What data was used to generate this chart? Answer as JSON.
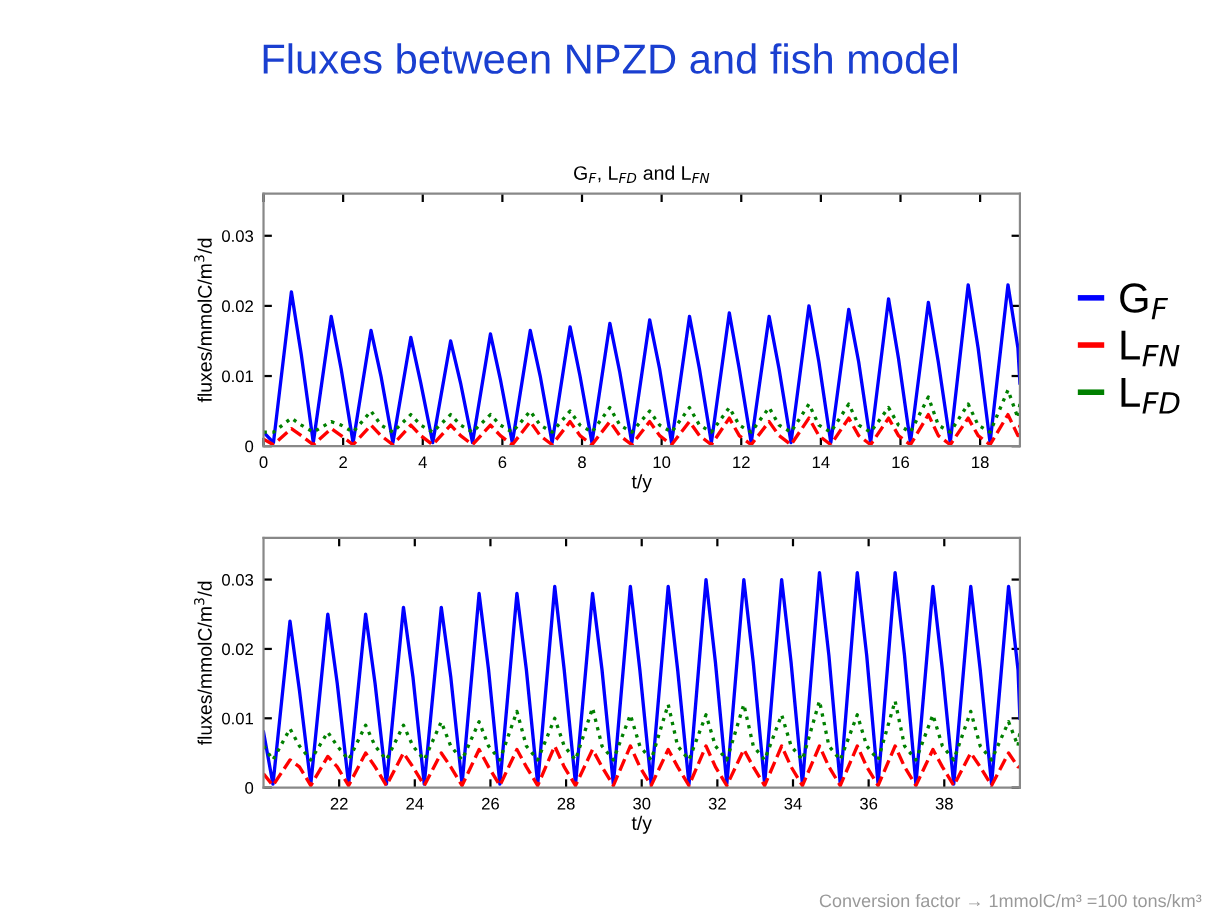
{
  "chart_data": [
    {
      "type": "line",
      "title": "Fluxes between NPZD and fish model",
      "subtitle": "G$_{F}$, L$_{FD}$ and L$_{FN}$",
      "xlabel": "t/y",
      "ylabel": "fluxes/mmolC/m$^{3}$/d",
      "xlim": [
        0,
        19
      ],
      "ylim": [
        0,
        0.036
      ],
      "xticks": [
        0,
        2,
        4,
        6,
        8,
        10,
        12,
        14,
        16,
        18
      ],
      "yticks": [
        0,
        0.01,
        0.02,
        0.03
      ],
      "grid": false,
      "legend": "right",
      "x": [
        0,
        0.25,
        0.7,
        0.95,
        1.25,
        1.7,
        1.95,
        2.25,
        2.7,
        2.95,
        3.25,
        3.7,
        3.95,
        4.25,
        4.7,
        4.95,
        5.25,
        5.7,
        5.95,
        6.25,
        6.7,
        6.95,
        7.25,
        7.7,
        7.95,
        8.25,
        8.7,
        8.95,
        9.25,
        9.7,
        9.95,
        10.25,
        10.7,
        10.95,
        11.25,
        11.7,
        11.95,
        12.25,
        12.7,
        12.95,
        13.25,
        13.7,
        13.95,
        14.25,
        14.7,
        14.95,
        15.25,
        15.7,
        15.95,
        16.25,
        16.7,
        16.95,
        17.25,
        17.7,
        17.95,
        18.25,
        18.7,
        18.95,
        19
      ],
      "series": [
        {
          "name": "G$_{F}$",
          "color": "#0000ff",
          "line_style": "solid",
          "values": [
            0.002,
            0.0005,
            0.022,
            0.013,
            0.0005,
            0.0185,
            0.011,
            0.0005,
            0.0165,
            0.01,
            0.0005,
            0.0155,
            0.009,
            0.0005,
            0.015,
            0.009,
            0.0005,
            0.016,
            0.0095,
            0.0005,
            0.0165,
            0.01,
            0.0005,
            0.017,
            0.01,
            0.0005,
            0.0175,
            0.0105,
            0.0005,
            0.018,
            0.011,
            0.0005,
            0.0185,
            0.011,
            0.0005,
            0.019,
            0.011,
            0.0005,
            0.0185,
            0.011,
            0.0005,
            0.02,
            0.012,
            0.0005,
            0.0195,
            0.012,
            0.0005,
            0.021,
            0.0125,
            0.0005,
            0.0205,
            0.012,
            0.0005,
            0.023,
            0.014,
            0.0005,
            0.023,
            0.014,
            0.009
          ]
        },
        {
          "name": "L$_{FN}$",
          "color": "#ff0000",
          "line_style": "dashed",
          "values": [
            0.001,
            0.0002,
            0.0025,
            0.0015,
            0.0002,
            0.0025,
            0.0015,
            0.0002,
            0.003,
            0.0015,
            0.0002,
            0.003,
            0.0015,
            0.0002,
            0.003,
            0.0015,
            0.0002,
            0.003,
            0.0015,
            0.0002,
            0.0035,
            0.0015,
            0.0002,
            0.0035,
            0.0015,
            0.0002,
            0.0035,
            0.0015,
            0.0002,
            0.0035,
            0.0015,
            0.0002,
            0.0035,
            0.0015,
            0.0002,
            0.004,
            0.0015,
            0.0002,
            0.0035,
            0.0015,
            0.0002,
            0.004,
            0.0015,
            0.0002,
            0.004,
            0.0015,
            0.0002,
            0.004,
            0.0015,
            0.0002,
            0.0045,
            0.0015,
            0.0002,
            0.004,
            0.0015,
            0.0002,
            0.0045,
            0.0015,
            0.003
          ]
        },
        {
          "name": "L$_{FD}$",
          "color": "#008000",
          "line_style": "dotted",
          "values": [
            0.002,
            0.002,
            0.004,
            0.003,
            0.002,
            0.0035,
            0.003,
            0.002,
            0.005,
            0.003,
            0.002,
            0.0045,
            0.003,
            0.002,
            0.0045,
            0.003,
            0.002,
            0.0045,
            0.003,
            0.002,
            0.005,
            0.003,
            0.002,
            0.005,
            0.003,
            0.002,
            0.0055,
            0.003,
            0.002,
            0.005,
            0.003,
            0.002,
            0.0055,
            0.003,
            0.002,
            0.0055,
            0.003,
            0.002,
            0.0055,
            0.003,
            0.002,
            0.006,
            0.003,
            0.002,
            0.006,
            0.003,
            0.002,
            0.0055,
            0.003,
            0.002,
            0.007,
            0.003,
            0.002,
            0.006,
            0.003,
            0.002,
            0.008,
            0.004,
            0.006
          ]
        }
      ]
    },
    {
      "type": "line",
      "xlabel": "t/y",
      "ylabel": "fluxes/mmolC/m$^{3}$/d",
      "xlim": [
        20,
        40
      ],
      "ylim": [
        0,
        0.036
      ],
      "xticks": [
        22,
        24,
        26,
        28,
        30,
        32,
        34,
        36,
        38
      ],
      "yticks": [
        0,
        0.01,
        0.02,
        0.03
      ],
      "grid": false,
      "annotations": [
        "Conversion factor → 1mmolC/m³ =100 tons/km³"
      ],
      "x": [
        20,
        20.25,
        20.7,
        20.95,
        21.25,
        21.7,
        21.95,
        22.25,
        22.7,
        22.95,
        23.25,
        23.7,
        23.95,
        24.25,
        24.7,
        24.95,
        25.25,
        25.7,
        25.95,
        26.25,
        26.7,
        26.95,
        27.25,
        27.7,
        27.95,
        28.25,
        28.7,
        28.95,
        29.25,
        29.7,
        29.95,
        30.25,
        30.7,
        30.95,
        31.25,
        31.7,
        31.95,
        32.25,
        32.7,
        32.95,
        33.25,
        33.7,
        33.95,
        34.25,
        34.7,
        34.95,
        35.25,
        35.7,
        35.95,
        36.25,
        36.7,
        36.95,
        37.25,
        37.7,
        37.95,
        38.25,
        38.7,
        38.95,
        39.25,
        39.7,
        39.95,
        40
      ],
      "series": [
        {
          "color": "#0000ff",
          "line_style": "solid",
          "values": [
            0.008,
            0.0005,
            0.024,
            0.014,
            0.0005,
            0.025,
            0.015,
            0.0005,
            0.025,
            0.015,
            0.0005,
            0.026,
            0.016,
            0.0005,
            0.026,
            0.016,
            0.0005,
            0.028,
            0.017,
            0.0005,
            0.028,
            0.017,
            0.0005,
            0.029,
            0.017,
            0.0005,
            0.028,
            0.017,
            0.0005,
            0.029,
            0.017,
            0.0005,
            0.029,
            0.017,
            0.0005,
            0.03,
            0.018,
            0.0005,
            0.03,
            0.018,
            0.0005,
            0.03,
            0.018,
            0.0005,
            0.031,
            0.019,
            0.0005,
            0.031,
            0.019,
            0.0005,
            0.031,
            0.019,
            0.0005,
            0.029,
            0.017,
            0.0005,
            0.029,
            0.017,
            0.0005,
            0.029,
            0.017,
            0.01
          ]
        },
        {
          "color": "#ff0000",
          "line_style": "dashed",
          "values": [
            0.002,
            0.0003,
            0.004,
            0.003,
            0.0003,
            0.0045,
            0.003,
            0.0003,
            0.005,
            0.003,
            0.0003,
            0.005,
            0.003,
            0.0003,
            0.005,
            0.003,
            0.0003,
            0.0055,
            0.003,
            0.0003,
            0.0055,
            0.003,
            0.0003,
            0.006,
            0.003,
            0.0003,
            0.0055,
            0.003,
            0.0003,
            0.006,
            0.003,
            0.0003,
            0.0055,
            0.003,
            0.0003,
            0.006,
            0.003,
            0.0003,
            0.0055,
            0.003,
            0.0003,
            0.006,
            0.003,
            0.0003,
            0.006,
            0.003,
            0.0003,
            0.006,
            0.003,
            0.0003,
            0.006,
            0.003,
            0.0003,
            0.0055,
            0.003,
            0.0003,
            0.005,
            0.003,
            0.0003,
            0.005,
            0.003,
            0.003
          ]
        },
        {
          "color": "#008000",
          "line_style": "dotted",
          "values": [
            0.006,
            0.004,
            0.0085,
            0.006,
            0.004,
            0.008,
            0.006,
            0.004,
            0.009,
            0.006,
            0.004,
            0.009,
            0.006,
            0.004,
            0.0095,
            0.006,
            0.004,
            0.0095,
            0.006,
            0.004,
            0.011,
            0.006,
            0.004,
            0.01,
            0.006,
            0.004,
            0.0115,
            0.006,
            0.004,
            0.0105,
            0.006,
            0.004,
            0.012,
            0.006,
            0.004,
            0.0105,
            0.006,
            0.004,
            0.012,
            0.006,
            0.004,
            0.0105,
            0.006,
            0.004,
            0.0125,
            0.006,
            0.004,
            0.0105,
            0.006,
            0.004,
            0.0125,
            0.006,
            0.004,
            0.0105,
            0.006,
            0.004,
            0.011,
            0.006,
            0.004,
            0.0095,
            0.006,
            0.008
          ]
        }
      ]
    }
  ]
}
